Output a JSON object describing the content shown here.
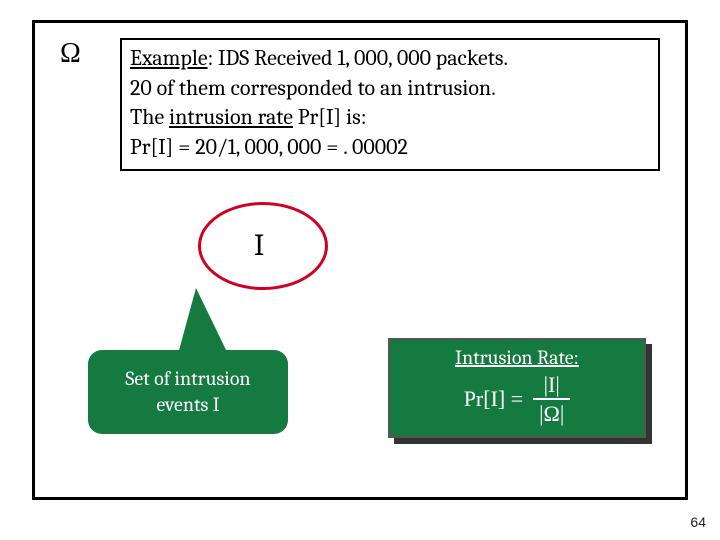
{
  "omega": "Ω",
  "example": {
    "line1_prefix": "Example",
    "line1_rest": ": IDS Received 1, 000, 000 packets.",
    "line2": "20 of them corresponded to an intrusion.",
    "line3_prefix": "The ",
    "line3_underlined": "intrusion rate",
    "line3_rest": " Pr[I] is:",
    "line4": "Pr[I] = 20/1, 000, 000  = . 00002"
  },
  "oval_label": "I",
  "callout": {
    "line1": "Set of intrusion",
    "line2": "events I"
  },
  "rate": {
    "title": "Intrusion Rate:",
    "lhs": "Pr[I] =",
    "numerator": "|I|",
    "denominator": "|Ω|"
  },
  "colors": {
    "green": "#157a40",
    "red": "#d00020",
    "border": "#000000",
    "shadow": "#333333"
  },
  "page_number": "64"
}
